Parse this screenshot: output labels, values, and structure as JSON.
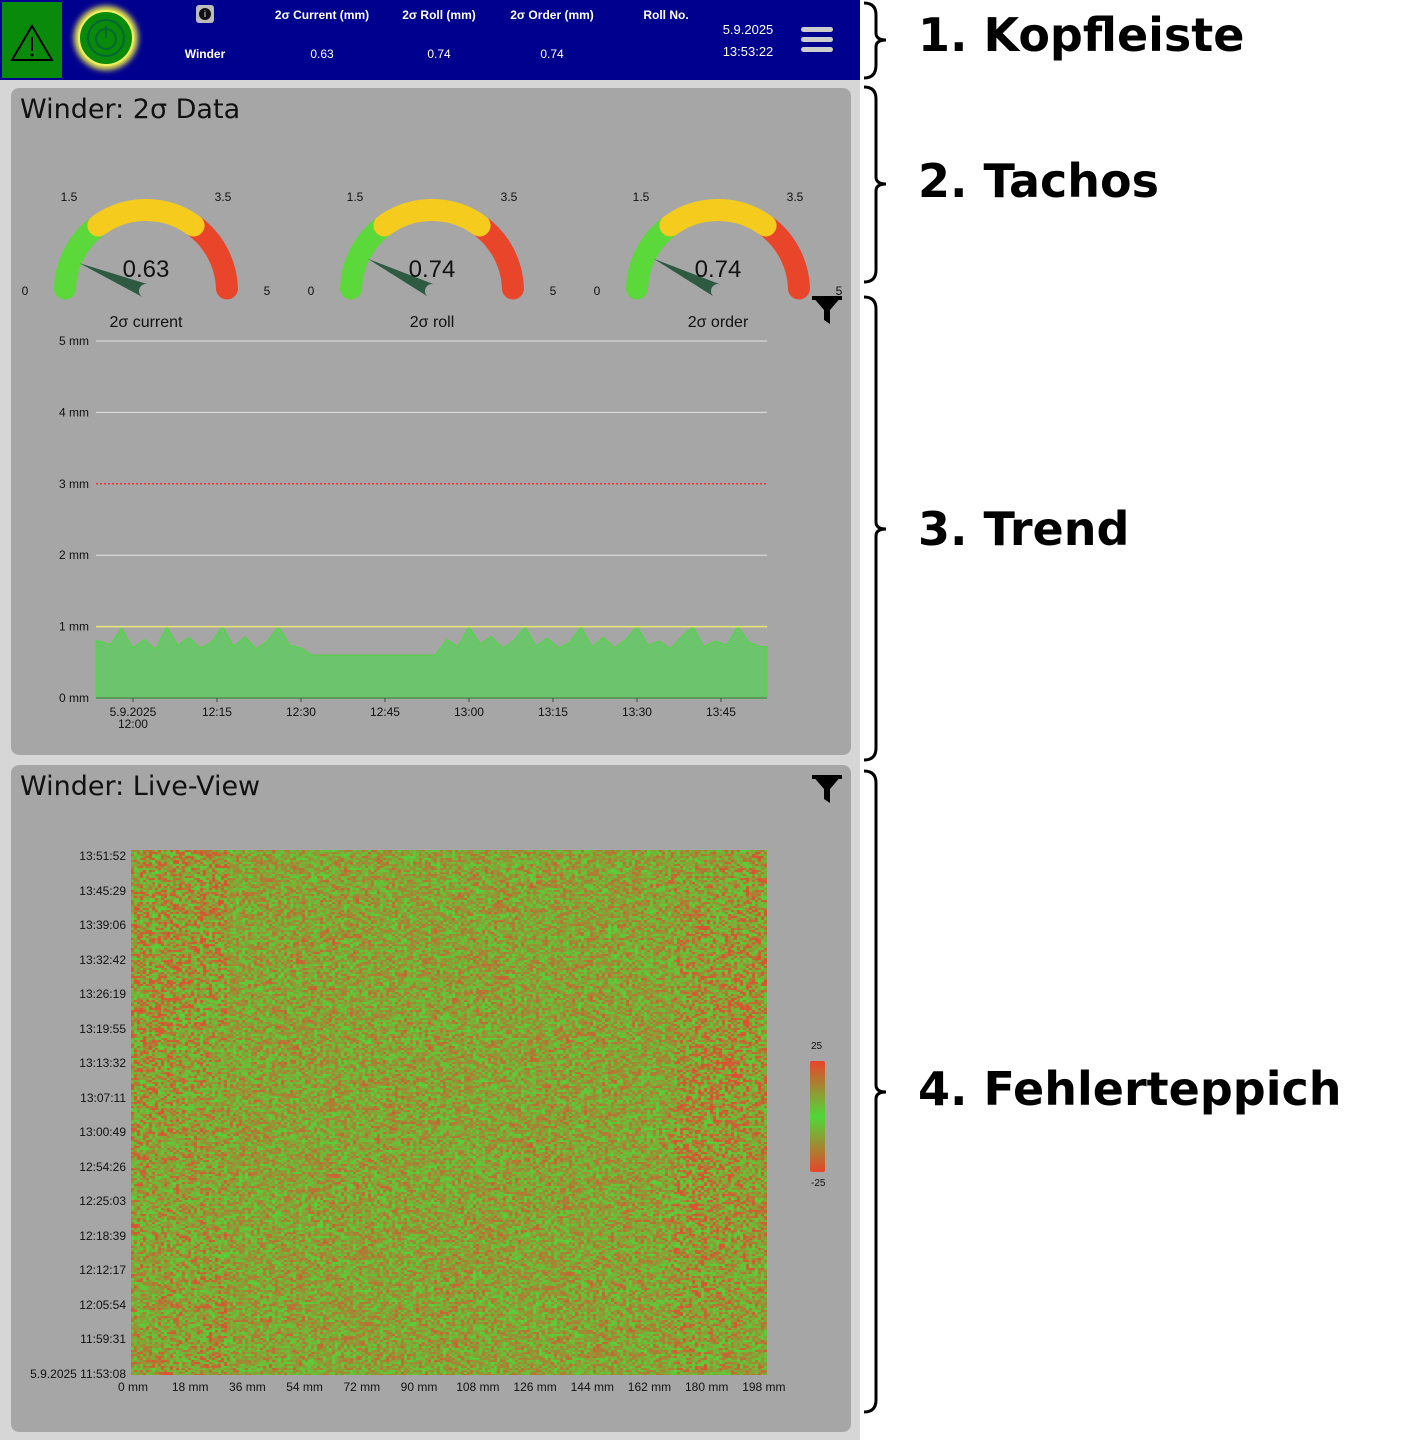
{
  "header": {
    "status_icon": "warning-triangle-icon",
    "power_icon": "power-icon",
    "info_icon": "info-icon",
    "menu_icon": "hamburger-menu-icon",
    "columns": [
      "2σ Current (mm)",
      "2σ Roll (mm)",
      "2σ Order (mm)",
      "Roll No."
    ],
    "row_label": "Winder",
    "values": [
      "0.63",
      "0.74",
      "0.74",
      ""
    ],
    "date": "5.9.2025",
    "time": "13:53:22",
    "colors": {
      "bar": "#00008f",
      "status_ok": "#0a8a0a"
    }
  },
  "panel1": {
    "title": "Winder: 2σ Data",
    "gauges": [
      {
        "label": "2σ current",
        "value": 0.63,
        "value_text": "0.63",
        "min": "0",
        "max": "5",
        "t1": "1.5",
        "t2": "3.5"
      },
      {
        "label": "2σ roll",
        "value": 0.74,
        "value_text": "0.74",
        "min": "0",
        "max": "5",
        "t1": "1.5",
        "t2": "3.5"
      },
      {
        "label": "2σ order",
        "value": 0.74,
        "value_text": "0.74",
        "min": "0",
        "max": "5",
        "t1": "1.5",
        "t2": "3.5"
      }
    ],
    "gauge_colors": {
      "green": "#5bd83a",
      "yellow": "#f5cc1e",
      "red": "#e8452a",
      "needle": "#2e5a42"
    },
    "filter_icon": "filter-icon"
  },
  "chart_data": [
    {
      "type": "area",
      "y_ticks": [
        "0 mm",
        "1 mm",
        "2 mm",
        "3 mm",
        "4 mm",
        "5 mm"
      ],
      "ylim": [
        0,
        5
      ],
      "x_ticks": [
        "5.9.2025\n12:00",
        "12:15",
        "12:30",
        "12:45",
        "13:00",
        "13:15",
        "13:30",
        "13:45"
      ],
      "x_tick_minutes": [
        "12:00",
        "12:15",
        "12:30",
        "12:45",
        "13:00",
        "13:15",
        "13:30",
        "13:45"
      ],
      "xlim": [
        "11:53",
        "13:53"
      ],
      "warning_line": {
        "value": 1,
        "color": "#e8e870"
      },
      "alarm_line": {
        "value": 3,
        "color": "#e03030",
        "style": "dotted"
      },
      "grid": true,
      "fill_color": "#6cc46c",
      "line_color": "#4fd840",
      "x": [
        "11:54",
        "11:56",
        "11:58",
        "12:00",
        "12:02",
        "12:04",
        "12:06",
        "12:08",
        "12:10",
        "12:12",
        "12:14",
        "12:16",
        "12:18",
        "12:20",
        "12:22",
        "12:24",
        "12:26",
        "12:28",
        "12:30",
        "12:32",
        "12:34",
        "12:36",
        "12:38",
        "12:40",
        "12:42",
        "12:44",
        "12:46",
        "12:48",
        "12:50",
        "12:52",
        "12:54",
        "12:56",
        "12:58",
        "13:00",
        "13:02",
        "13:04",
        "13:06",
        "13:08",
        "13:10",
        "13:12",
        "13:14",
        "13:16",
        "13:18",
        "13:20",
        "13:22",
        "13:24",
        "13:26",
        "13:28",
        "13:30",
        "13:32",
        "13:34",
        "13:36",
        "13:38",
        "13:40",
        "13:42",
        "13:44",
        "13:46",
        "13:48",
        "13:50",
        "13:52"
      ],
      "values": [
        0.8,
        0.75,
        0.98,
        0.7,
        0.82,
        0.68,
        1.0,
        0.74,
        0.85,
        0.7,
        0.78,
        1.0,
        0.72,
        0.86,
        0.69,
        0.8,
        1.0,
        0.74,
        0.7,
        0.6,
        0.6,
        0.6,
        0.6,
        0.6,
        0.6,
        0.6,
        0.6,
        0.6,
        0.6,
        0.6,
        0.6,
        0.82,
        0.72,
        1.0,
        0.76,
        0.86,
        0.7,
        0.8,
        1.0,
        0.73,
        0.84,
        0.7,
        0.78,
        1.0,
        0.72,
        0.85,
        0.7,
        0.82,
        1.0,
        0.74,
        0.8,
        0.69,
        0.86,
        1.0,
        0.72,
        0.8,
        0.74,
        1.0,
        0.78,
        0.72
      ]
    },
    {
      "type": "heatmap",
      "title": "Winder: Live-View",
      "y_ticks": [
        "13:51:52",
        "13:45:29",
        "13:39:06",
        "13:32:42",
        "13:26:19",
        "13:19:55",
        "13:13:32",
        "13:07:11",
        "13:00:49",
        "12:54:26",
        "12:25:03",
        "12:18:39",
        "12:12:17",
        "12:05:54",
        "11:59:31",
        "5.9.2025 11:53:08"
      ],
      "x_ticks": [
        "0 mm",
        "18 mm",
        "36 mm",
        "54 mm",
        "72 mm",
        "90 mm",
        "108 mm",
        "126 mm",
        "144 mm",
        "162 mm",
        "180 mm",
        "198 mm"
      ],
      "colorbar": {
        "max": "25",
        "min": "-25",
        "colors": [
          "#e8452a",
          "#4fd83a",
          "#e8452a"
        ]
      }
    }
  ],
  "panel2": {
    "title": "Winder: Live-View",
    "filter_icon": "filter-icon"
  },
  "annotations": [
    "1. Kopfleiste",
    "2. Tachos",
    "3. Trend",
    "4. Fehlerteppich"
  ]
}
